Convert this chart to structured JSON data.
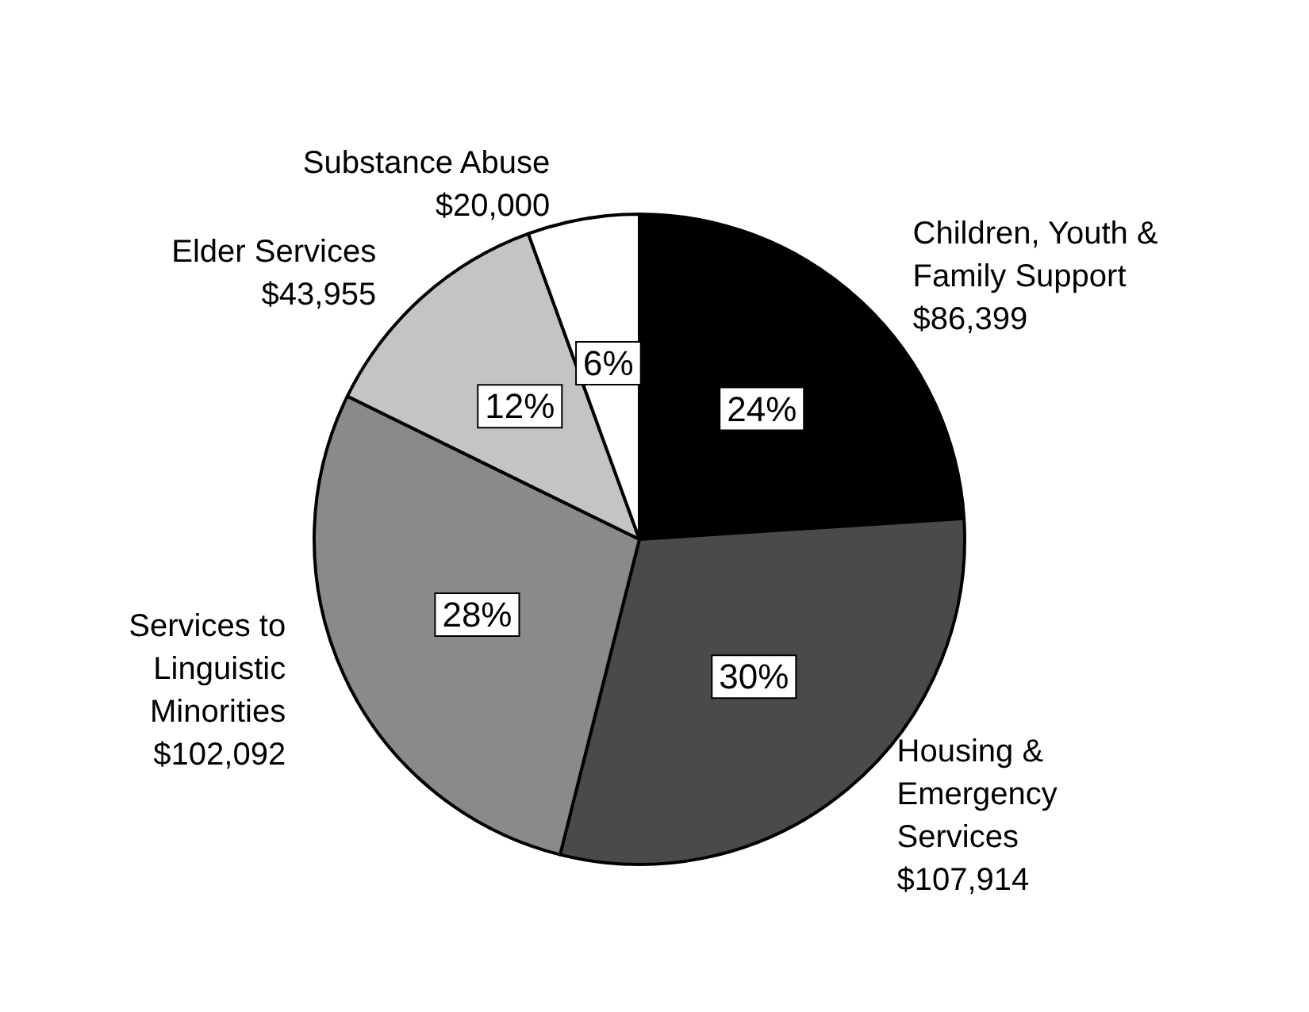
{
  "chart_data": {
    "type": "pie",
    "categories": [
      "Children, Youth &\nFamily Support",
      "Housing &\nEmergency\nServices",
      "Services to\nLinguistic\nMinorities",
      "Elder Services",
      "Substance Abuse"
    ],
    "values": [
      86399,
      107914,
      102092,
      43955,
      20000
    ],
    "value_labels": [
      "$86,399",
      "$107,914",
      "$102,092",
      "$43,955",
      "$20,000"
    ],
    "colors": [
      "#000000",
      "#4a4a4a",
      "#8a8a8a",
      "#c4c4c4",
      "#ffffff"
    ],
    "annotations": [
      "24%",
      "30%",
      "28%",
      "12%",
      "6%"
    ]
  }
}
